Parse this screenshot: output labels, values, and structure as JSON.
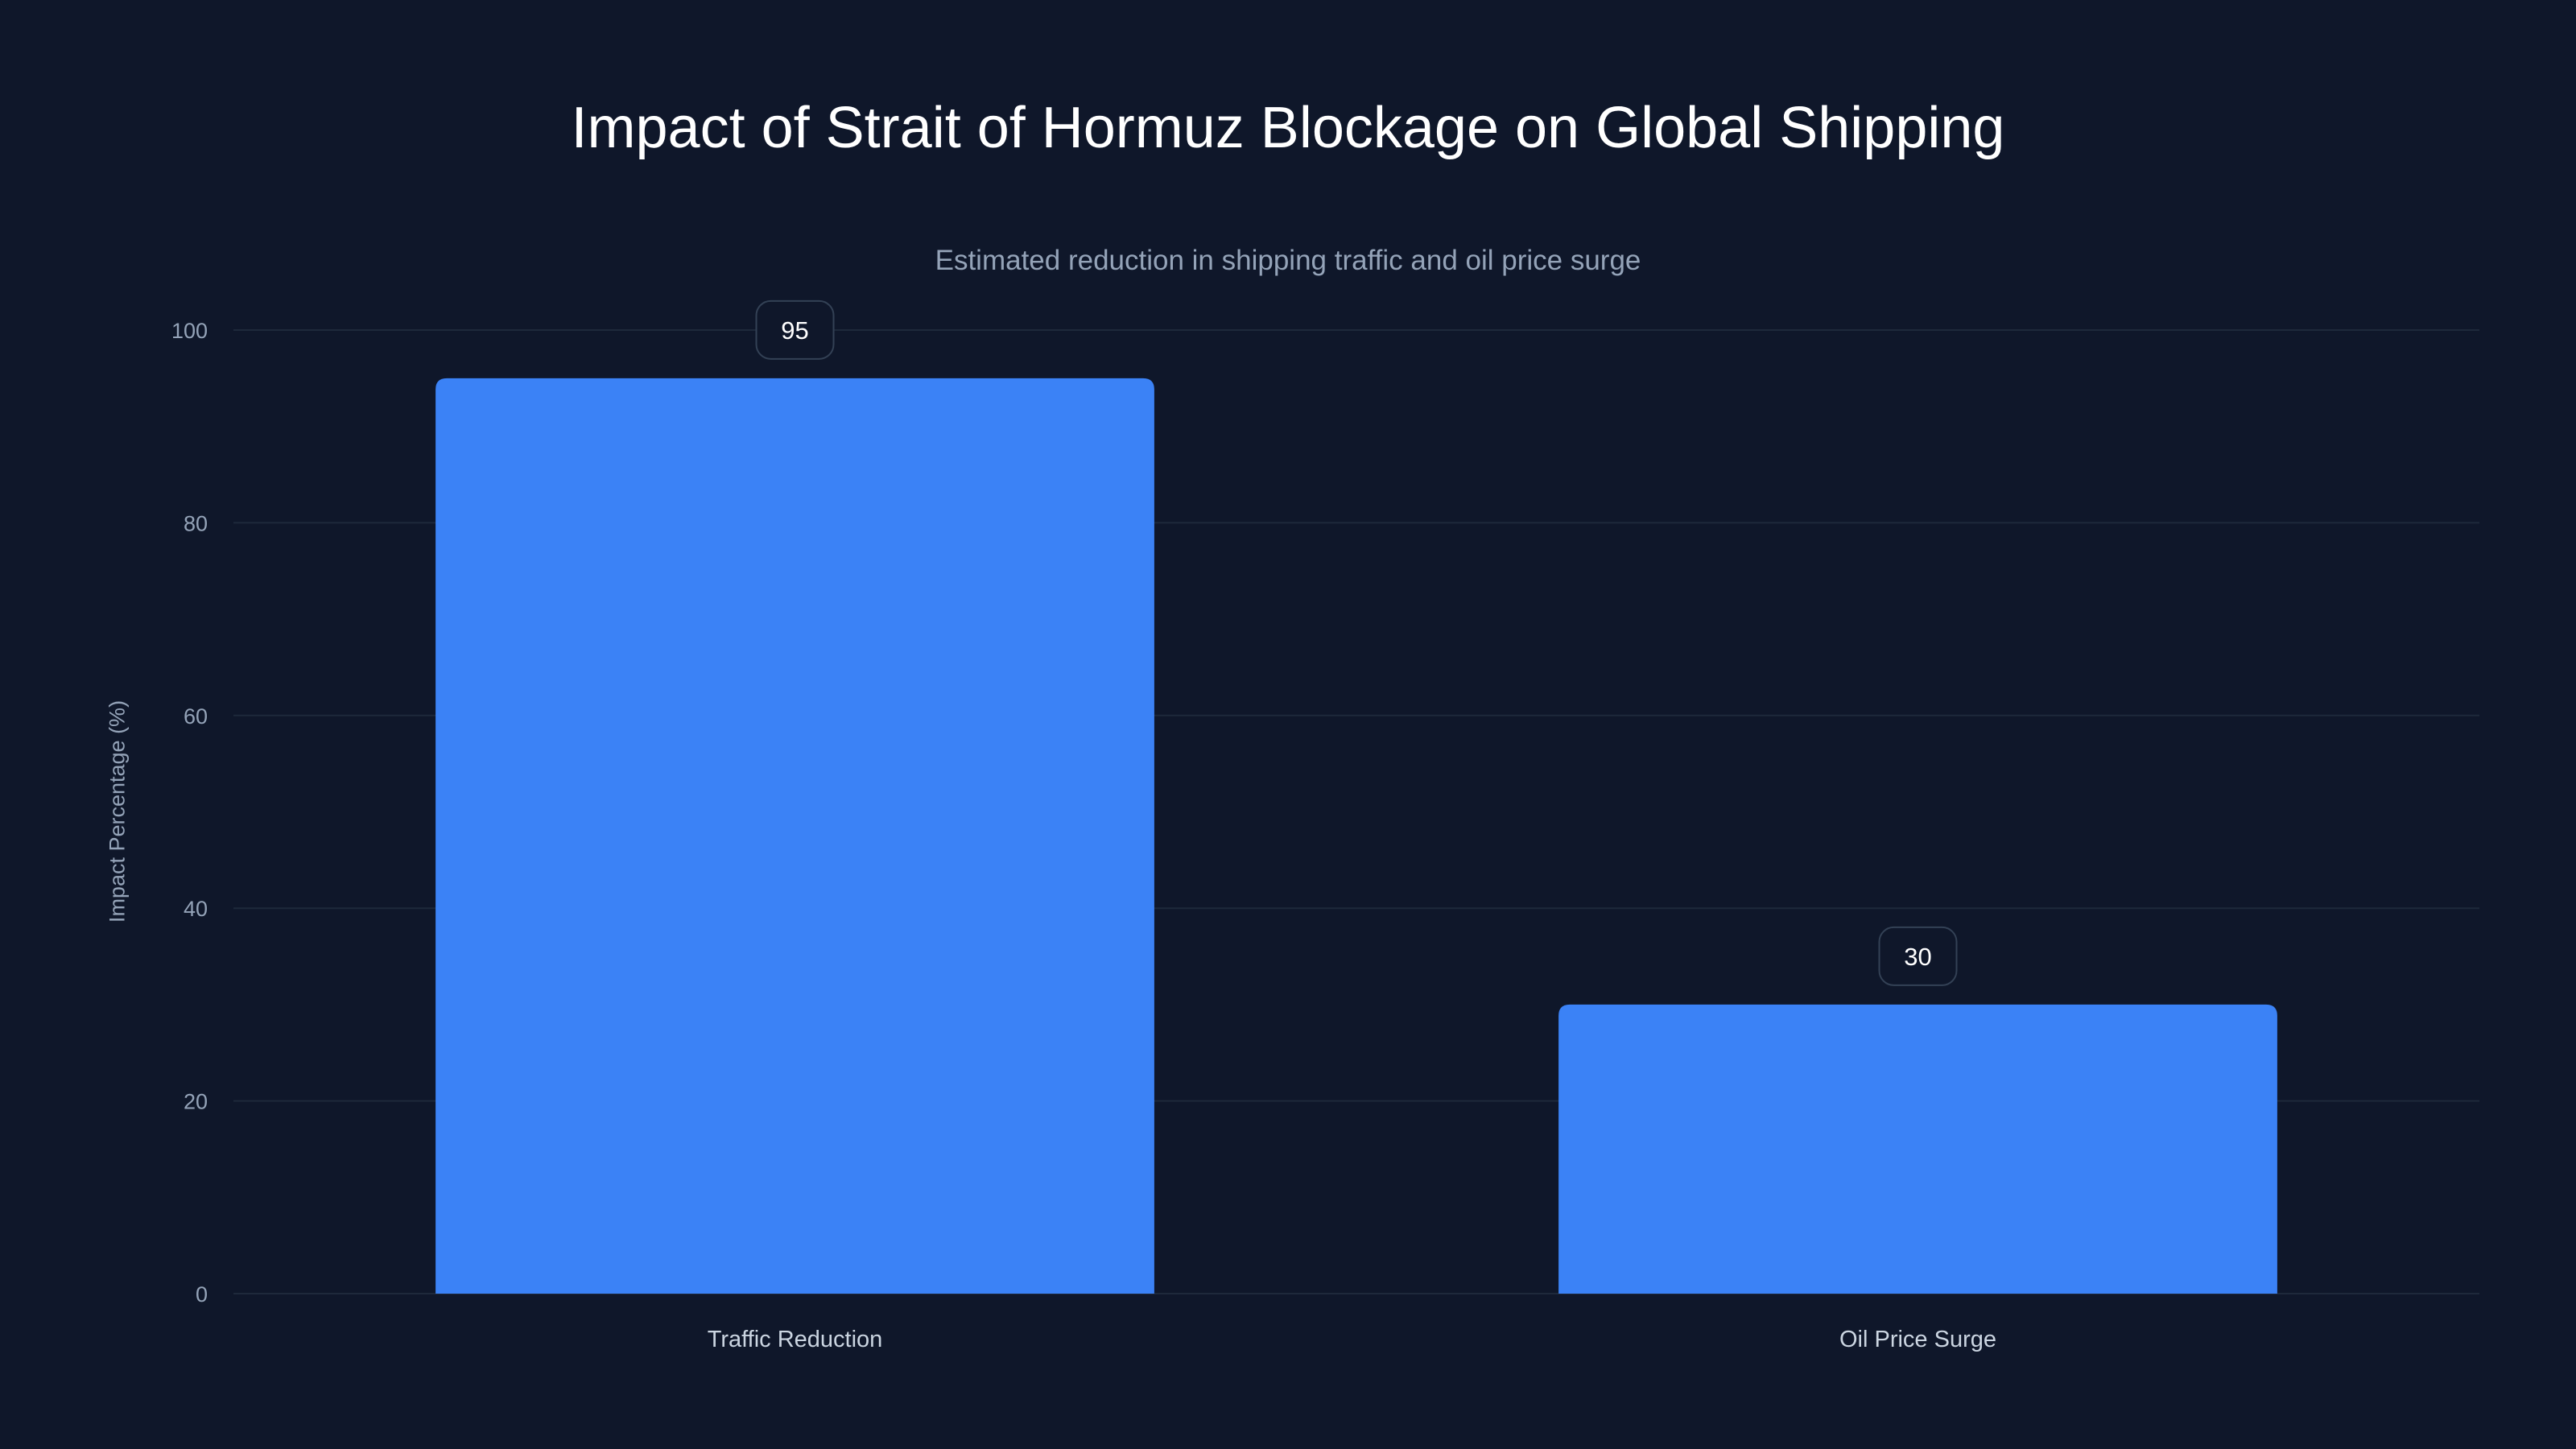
{
  "chart_data": {
    "type": "bar",
    "title": "Impact of Strait of Hormuz Blockage on Global Shipping",
    "subtitle": "Estimated reduction in shipping traffic and oil price surge",
    "xlabel": "",
    "ylabel": "Impact Percentage (%)",
    "categories": [
      "Traffic Reduction",
      "Oil Price Surge"
    ],
    "values": [
      95,
      30
    ],
    "data_labels": [
      "95",
      "30"
    ],
    "ylim": [
      0,
      100
    ],
    "yticks": [
      "0",
      "20",
      "40",
      "60",
      "80",
      "100"
    ],
    "grid": true,
    "legend": "none",
    "colors": {
      "bar": "#3b82f6",
      "background": "#0f172a",
      "grid": "#1e293b"
    }
  }
}
